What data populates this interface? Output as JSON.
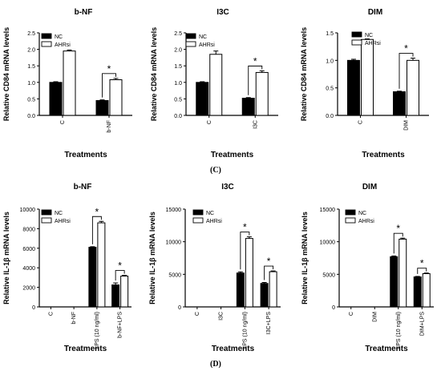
{
  "panel_labels": [
    "(C)",
    "(D)"
  ],
  "chart_data": [
    {
      "type": "bar",
      "title": "b-NF",
      "xlabel": "Treatments",
      "ylabel": "Relative CD84 mRNA levels",
      "categories": [
        "C",
        "b-NF"
      ],
      "ylim": [
        0,
        2.5
      ],
      "yticks": [
        "0.0",
        "0.5",
        "1.0",
        "1.5",
        "2.0",
        "2.5"
      ],
      "series": [
        {
          "name": "NC",
          "values": [
            1.0,
            0.45
          ],
          "errors": [
            0.02,
            0.02
          ],
          "color": "#000000"
        },
        {
          "name": "AHRsi",
          "values": [
            1.95,
            1.08
          ],
          "errors": [
            0.03,
            0.04
          ],
          "color": "#ffffff"
        }
      ],
      "significance": [
        {
          "category": "b-NF",
          "label": "*"
        }
      ],
      "legend": "top-left"
    },
    {
      "type": "bar",
      "title": "I3C",
      "xlabel": "Treatments",
      "ylabel": "Relative CD84 mRNA levels",
      "categories": [
        "C",
        "I3C"
      ],
      "ylim": [
        0,
        2.5
      ],
      "yticks": [
        "0.0",
        "0.5",
        "1.0",
        "1.5",
        "2.0",
        "2.5"
      ],
      "series": [
        {
          "name": "NC",
          "values": [
            1.0,
            0.52
          ],
          "errors": [
            0.02,
            0.02
          ],
          "color": "#000000"
        },
        {
          "name": "AHRsi",
          "values": [
            1.85,
            1.3
          ],
          "errors": [
            0.1,
            0.05
          ],
          "color": "#ffffff"
        }
      ],
      "significance": [
        {
          "category": "I3C",
          "label": "*"
        }
      ],
      "legend": "top-left"
    },
    {
      "type": "bar",
      "title": "DIM",
      "xlabel": "Treatments",
      "ylabel": "Relative CD84 mRNA levels",
      "categories": [
        "C",
        "DIM"
      ],
      "ylim": [
        0,
        1.5
      ],
      "yticks": [
        "0.0",
        "0.5",
        "1.0",
        "1.5"
      ],
      "series": [
        {
          "name": "NC",
          "values": [
            1.0,
            0.43
          ],
          "errors": [
            0.02,
            0.01
          ],
          "color": "#000000"
        },
        {
          "name": "AHRsi",
          "values": [
            1.38,
            1.0
          ],
          "errors": [
            0.01,
            0.04
          ],
          "color": "#ffffff"
        }
      ],
      "significance": [
        {
          "category": "DIM",
          "label": "*"
        }
      ],
      "legend": "top-right"
    },
    {
      "type": "bar",
      "title": "b-NF",
      "xlabel": "Treatments",
      "ylabel": "Relative IL-1β mRNA levels",
      "categories": [
        "C",
        "b-NF",
        "LPS (10 ng/ml)",
        "b-NF+LPS"
      ],
      "ylim": [
        0,
        10000
      ],
      "yticks": [
        "0",
        "2000",
        "4000",
        "6000",
        "8000",
        "10000"
      ],
      "series": [
        {
          "name": "NC",
          "values": [
            0,
            0,
            6100,
            2250
          ],
          "errors": [
            0,
            0,
            60,
            200
          ],
          "color": "#000000"
        },
        {
          "name": "AHRsi",
          "values": [
            0,
            0,
            8600,
            3150
          ],
          "errors": [
            0,
            0,
            150,
            80
          ],
          "color": "#ffffff"
        }
      ],
      "significance": [
        {
          "category": "LPS (10 ng/ml)",
          "label": "*"
        },
        {
          "category": "b-NF+LPS",
          "label": "*"
        }
      ],
      "legend": "top-left"
    },
    {
      "type": "bar",
      "title": "I3C",
      "xlabel": "Treatments",
      "ylabel": "Relative IL-1β mRNA levels",
      "categories": [
        "C",
        "I3C",
        "LPS (10 ng/ml)",
        "I3C+LPS"
      ],
      "ylim": [
        0,
        15000
      ],
      "yticks": [
        "0",
        "5000",
        "10000",
        "15000"
      ],
      "series": [
        {
          "name": "NC",
          "values": [
            0,
            0,
            5200,
            3600
          ],
          "errors": [
            0,
            0,
            180,
            150
          ],
          "color": "#000000"
        },
        {
          "name": "AHRsi",
          "values": [
            0,
            0,
            10500,
            5400
          ],
          "errors": [
            0,
            0,
            250,
            120
          ],
          "color": "#ffffff"
        }
      ],
      "significance": [
        {
          "category": "LPS (10 ng/ml)",
          "label": "*"
        },
        {
          "category": "I3C+LPS",
          "label": "*"
        }
      ],
      "legend": "top-left"
    },
    {
      "type": "bar",
      "title": "DIM",
      "xlabel": "Treatments",
      "ylabel": "Relative IL-1β mRNA levels",
      "categories": [
        "C",
        "DIM",
        "LPS (10 ng/ml)",
        "DIM+LPS"
      ],
      "ylim": [
        0,
        15000
      ],
      "yticks": [
        "0",
        "5000",
        "10000",
        "15000"
      ],
      "series": [
        {
          "name": "NC",
          "values": [
            0,
            0,
            7700,
            4600
          ],
          "errors": [
            0,
            0,
            120,
            80
          ],
          "color": "#000000"
        },
        {
          "name": "AHRsi",
          "values": [
            0,
            0,
            10400,
            5100
          ],
          "errors": [
            0,
            0,
            150,
            100
          ],
          "color": "#ffffff"
        }
      ],
      "significance": [
        {
          "category": "LPS (10 ng/ml)",
          "label": "*"
        },
        {
          "category": "DIM+LPS",
          "label": "*"
        }
      ],
      "legend": "top-left"
    }
  ]
}
